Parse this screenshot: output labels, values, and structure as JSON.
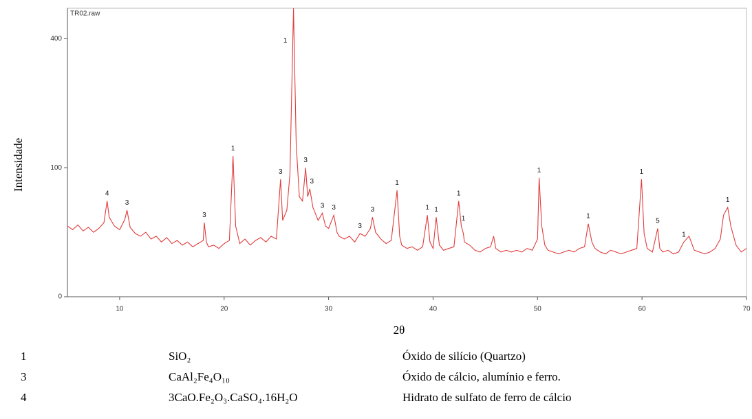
{
  "chart_data": {
    "type": "line",
    "file_label": "TR02.raw",
    "ylabel": "Intensidade",
    "xlabel": "2θ",
    "color": "#e03c3c",
    "y_scale": "sqrt",
    "xlim": [
      5,
      70
    ],
    "ylim": [
      0,
      500
    ],
    "xticks": [
      10,
      20,
      30,
      40,
      50,
      60,
      70
    ],
    "yticks": [
      0,
      100,
      400
    ],
    "x": [
      5,
      5.5,
      6,
      6.5,
      7,
      7.5,
      8,
      8.5,
      8.8,
      9,
      9.5,
      10,
      10.5,
      10.7,
      11,
      11.5,
      12,
      12.5,
      13,
      13.5,
      14,
      14.5,
      15,
      15.5,
      16,
      16.5,
      17,
      17.5,
      18,
      18.1,
      18.3,
      18.5,
      19,
      19.5,
      20,
      20.5,
      20.85,
      21.1,
      21.5,
      22,
      22.5,
      23,
      23.5,
      24,
      24.5,
      25,
      25.4,
      25.6,
      26,
      26.3,
      26.64,
      26.9,
      27.2,
      27.5,
      27.8,
      28,
      28.2,
      28.5,
      29,
      29.4,
      29.7,
      30,
      30.5,
      30.8,
      31,
      31.5,
      32,
      32.5,
      33,
      33.5,
      34,
      34.2,
      34.5,
      35,
      35.5,
      36,
      36.55,
      36.8,
      37,
      37.5,
      38,
      38.5,
      39,
      39.45,
      39.7,
      40,
      40.3,
      40.6,
      41,
      41.5,
      42,
      42.45,
      42.7,
      42.9,
      43,
      43.5,
      44,
      44.5,
      45,
      45.5,
      45.8,
      46,
      46.5,
      47,
      47.5,
      48,
      48.5,
      49,
      49.5,
      50,
      50.15,
      50.4,
      50.7,
      51,
      51.5,
      52,
      52.5,
      53,
      53.5,
      54,
      54.5,
      54.85,
      55.2,
      55.5,
      56,
      56.5,
      57,
      57.5,
      58,
      58.5,
      59,
      59.5,
      59.95,
      60.2,
      60.5,
      61,
      61.5,
      61.7,
      62,
      62.5,
      63,
      63.5,
      64,
      64.5,
      65,
      65.5,
      66,
      66.5,
      67,
      67.5,
      67.8,
      68.2,
      68.5,
      69,
      69.5,
      70
    ],
    "values": [
      30,
      27,
      31,
      26,
      29,
      25,
      28,
      33,
      55,
      38,
      30,
      27,
      36,
      45,
      29,
      24,
      22,
      25,
      20,
      22,
      18,
      21,
      17,
      19,
      16,
      18,
      15,
      17,
      19,
      33,
      18,
      15,
      16,
      14,
      17,
      19,
      119,
      30,
      17,
      20,
      16,
      19,
      21,
      18,
      22,
      20,
      83,
      35,
      45,
      90,
      520,
      140,
      60,
      55,
      100,
      60,
      70,
      48,
      35,
      42,
      30,
      28,
      40,
      25,
      22,
      20,
      22,
      18,
      24,
      22,
      28,
      38,
      25,
      20,
      17,
      19,
      68,
      22,
      16,
      14,
      15,
      13,
      15,
      40,
      18,
      14,
      38,
      16,
      13,
      14,
      15,
      55,
      30,
      24,
      18,
      16,
      13,
      12,
      14,
      15,
      22,
      14,
      12,
      13,
      12,
      13,
      12,
      14,
      13,
      20,
      85,
      30,
      16,
      13,
      12,
      11,
      12,
      13,
      12,
      14,
      15,
      32,
      18,
      14,
      12,
      11,
      13,
      12,
      11,
      12,
      13,
      14,
      83,
      24,
      14,
      12,
      28,
      14,
      12,
      13,
      11,
      12,
      18,
      22,
      13,
      12,
      11,
      12,
      14,
      20,
      40,
      48,
      30,
      16,
      12,
      14
    ],
    "annotations": [
      {
        "text": "4",
        "x": 8.8
      },
      {
        "text": "3",
        "x": 10.7
      },
      {
        "text": "3",
        "x": 18.1
      },
      {
        "text": "1",
        "x": 20.85
      },
      {
        "text": "3",
        "x": 25.4
      },
      {
        "text": "1",
        "x": 26.64
      },
      {
        "text": "3",
        "x": 27.8
      },
      {
        "text": "3",
        "x": 28.4
      },
      {
        "text": "3",
        "x": 29.4
      },
      {
        "text": "3",
        "x": 30.5
      },
      {
        "text": "3",
        "x": 33
      },
      {
        "text": "3",
        "x": 34.2
      },
      {
        "text": "1",
        "x": 36.55
      },
      {
        "text": "1",
        "x": 39.45
      },
      {
        "text": "1",
        "x": 40.3
      },
      {
        "text": "1",
        "x": 42.45
      },
      {
        "text": "1",
        "x": 42.9
      },
      {
        "text": "1",
        "x": 50.15
      },
      {
        "text": "1",
        "x": 54.85
      },
      {
        "text": "1",
        "x": 59.95
      },
      {
        "text": "5",
        "x": 61.5
      },
      {
        "text": "1",
        "x": 64
      },
      {
        "text": "1",
        "x": 68.2
      }
    ]
  },
  "legend_table": {
    "rows": [
      [
        "1",
        "SiO₂",
        "Óxido de silício (Quartzo)"
      ],
      [
        "3",
        "CaAl₂Fe₄O₁₀",
        "Óxido de cálcio, alumínio e ferro."
      ],
      [
        "4",
        "3CaO.Fe₂O₃.CaSO₄.16H₂O",
        "Hidrato de sulfato de ferro de cálcio"
      ]
    ]
  }
}
